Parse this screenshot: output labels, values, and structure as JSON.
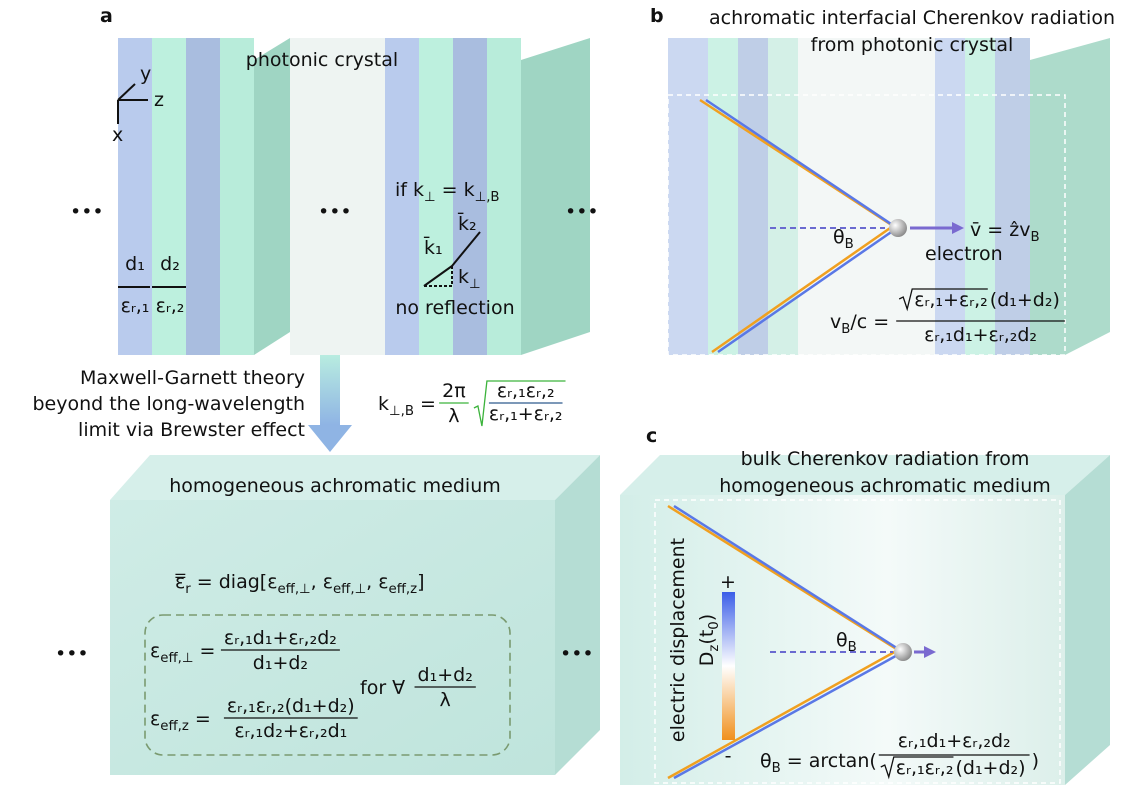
{
  "a": {
    "label": "a",
    "title": "photonic crystal",
    "axis_y": "y",
    "axis_z": "z",
    "axis_x": "x",
    "ellipsis": "•••",
    "condition": [
      "if k",
      "⊥",
      " = k",
      "⊥,B"
    ],
    "k2": "k̄₂",
    "k1": "k̄₁",
    "kperp": [
      "k",
      "⊥"
    ],
    "no_reflection": "no reflection",
    "d1": "d₁",
    "d2": "d₂",
    "eps1": "εᵣ,₁",
    "eps2": "εᵣ,₂",
    "theory": [
      "Maxwell-Garnett theory",
      "beyond the long-wavelength",
      "limit via Brewster effect"
    ],
    "kB": {
      "lhs": [
        "k",
        "⊥,B",
        " ="
      ],
      "num": "2π",
      "den": "λ",
      "sqrt_num": "εᵣ,₁εᵣ,₂",
      "sqrt_den": "εᵣ,₁+εᵣ,₂"
    },
    "medium": "homogeneous achromatic medium",
    "diag": [
      "ε̿",
      "r",
      " = diag[ε",
      "eff,⊥",
      ", ε",
      "eff,⊥",
      ", ε",
      "eff,z",
      "]"
    ],
    "eps_perp": {
      "lhs": [
        "ε",
        "eff,⊥",
        " ="
      ],
      "num": "εᵣ,₁d₁+εᵣ,₂d₂",
      "den": "d₁+d₂"
    },
    "eps_z": {
      "lhs": [
        "ε",
        "eff,z",
        " ="
      ],
      "num": "εᵣ,₁εᵣ,₂(d₁+d₂)",
      "den": "εᵣ,₁d₂+εᵣ,₂d₁"
    },
    "for_all": {
      "text": "for ∀",
      "num": "d₁+d₂",
      "den": "λ"
    }
  },
  "b": {
    "label": "b",
    "title": [
      "achromatic interfacial Cherenkov radiation",
      "from photonic crystal"
    ],
    "theta": [
      "θ",
      "B"
    ],
    "velocity": [
      "v̄ = ẑv",
      "B"
    ],
    "electron": "electron",
    "vB": {
      "lhs": [
        "v",
        "B",
        "/c ="
      ],
      "sqrt": "εᵣ,₁+εᵣ,₂",
      "num_rest": "(d₁+d₂)",
      "den": "εᵣ,₁d₁+εᵣ,₂d₂"
    }
  },
  "c": {
    "label": "c",
    "title": [
      "bulk Cherenkov radiation from",
      "homogeneous achromatic medium"
    ],
    "ylabel": "electric displacement",
    "quantity": [
      "D",
      "z",
      "(t",
      "0",
      ")"
    ],
    "plus": "+",
    "minus": "-",
    "theta": [
      "θ",
      "B"
    ],
    "formula": {
      "lhs": [
        "θ",
        "B",
        " = arctan("
      ],
      "num": "εᵣ,₁d₁+εᵣ,₂d₂",
      "sqrt": "εᵣ,₁εᵣ,₂",
      "den_rest": "(d₁+d₂)",
      "close": ")"
    }
  }
}
